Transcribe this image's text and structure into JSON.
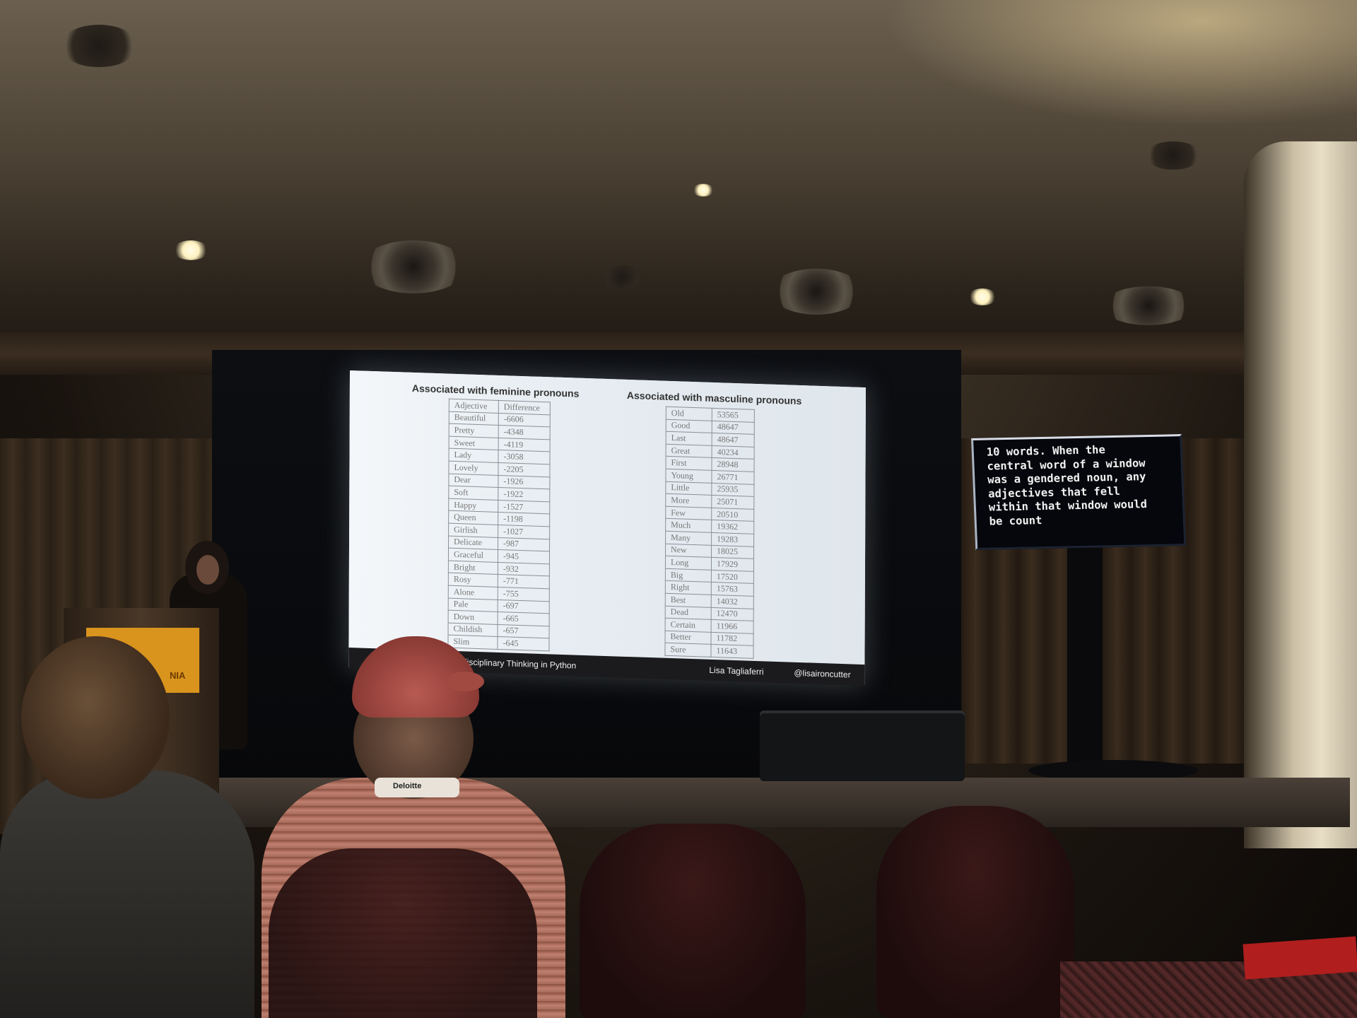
{
  "slide": {
    "feminine": {
      "title": "Associated with feminine pronouns",
      "header": [
        "Adjective",
        "Difference"
      ],
      "rows": [
        [
          "Beautiful",
          "-6606"
        ],
        [
          "Pretty",
          "-4348"
        ],
        [
          "Sweet",
          "-4119"
        ],
        [
          "Lady",
          "-3058"
        ],
        [
          "Lovely",
          "-2205"
        ],
        [
          "Dear",
          "-1926"
        ],
        [
          "Soft",
          "-1922"
        ],
        [
          "Happy",
          "-1527"
        ],
        [
          "Queen",
          "-1198"
        ],
        [
          "Girlish",
          "-1027"
        ],
        [
          "Delicate",
          "-987"
        ],
        [
          "Graceful",
          "-945"
        ],
        [
          "Bright",
          "-932"
        ],
        [
          "Rosy",
          "-771"
        ],
        [
          "Alone",
          "-755"
        ],
        [
          "Pale",
          "-697"
        ],
        [
          "Down",
          "-665"
        ],
        [
          "Childish",
          "-657"
        ],
        [
          "Slim",
          "-645"
        ]
      ]
    },
    "masculine": {
      "title": "Associated with masculine pronouns",
      "rows": [
        [
          "Old",
          "53565"
        ],
        [
          "Good",
          "48647"
        ],
        [
          "Last",
          "48647"
        ],
        [
          "Great",
          "40234"
        ],
        [
          "First",
          "28948"
        ],
        [
          "Young",
          "26771"
        ],
        [
          "Little",
          "25935"
        ],
        [
          "More",
          "25071"
        ],
        [
          "Few",
          "20510"
        ],
        [
          "Much",
          "19362"
        ],
        [
          "Many",
          "19283"
        ],
        [
          "New",
          "18025"
        ],
        [
          "Long",
          "17929"
        ],
        [
          "Big",
          "17520"
        ],
        [
          "Right",
          "15763"
        ],
        [
          "Best",
          "14032"
        ],
        [
          "Dead",
          "12470"
        ],
        [
          "Certain",
          "11966"
        ],
        [
          "Better",
          "11782"
        ],
        [
          "Sure",
          "11643"
        ]
      ]
    },
    "footer": {
      "talk": "erdisciplinary Thinking in Python",
      "speaker": "Lisa Tagliaferri",
      "handle": "@lisaironcutter"
    }
  },
  "caption_monitor": {
    "text": "10 words. When the\ncentral word of a window\nwas a gendered noun, any\nadjectives that fell\nwithin that window would\nbe count"
  },
  "podium": {
    "sign_text": "NIA"
  },
  "badge": {
    "text": "Deloitte"
  }
}
